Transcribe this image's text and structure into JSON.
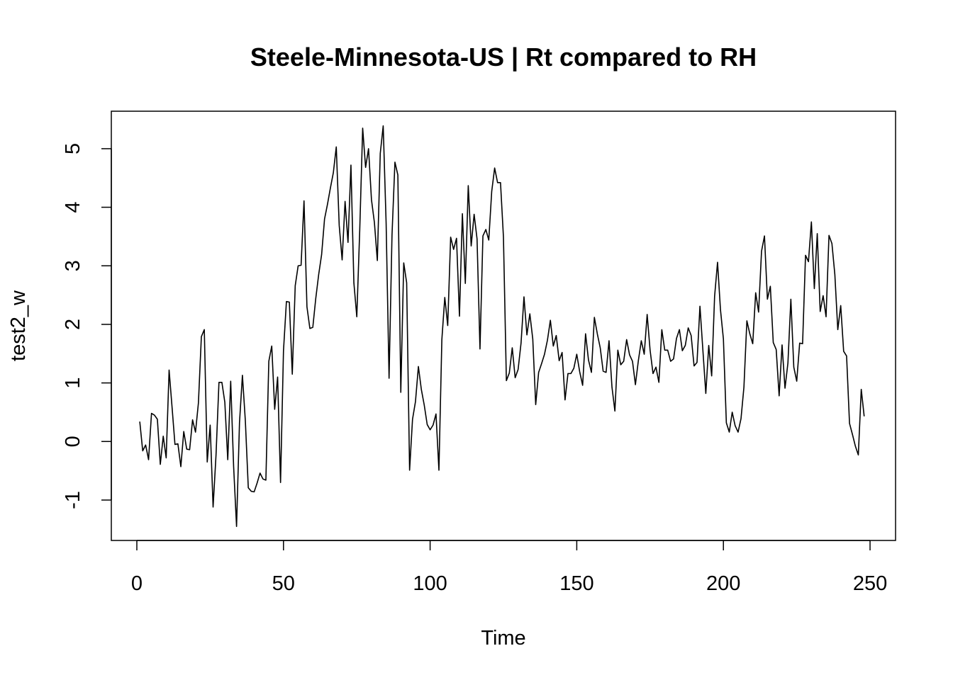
{
  "chart_data": {
    "type": "line",
    "title": "Steele-Minnesota-US | Rt compared to RH",
    "xlabel": "Time",
    "ylabel": "test2_w",
    "xlim": [
      -8.7,
      258.7
    ],
    "ylim": [
      -1.69,
      5.64
    ],
    "x_ticks": [
      0,
      50,
      100,
      150,
      200,
      250
    ],
    "y_ticks": [
      -1,
      0,
      1,
      2,
      3,
      4,
      5
    ],
    "x_tick_labels": [
      "0",
      "50",
      "100",
      "150",
      "200",
      "250"
    ],
    "y_tick_labels": [
      "-1",
      "0",
      "1",
      "2",
      "3",
      "4",
      "5"
    ],
    "grid": false,
    "line_color": "#000000",
    "series": [
      {
        "x_start": 1,
        "values": [
          0.34,
          -0.16,
          -0.06,
          -0.31,
          0.48,
          0.45,
          0.38,
          -0.39,
          0.09,
          -0.28,
          1.22,
          0.59,
          -0.05,
          -0.04,
          -0.43,
          0.17,
          -0.13,
          -0.14,
          0.37,
          0.16,
          0.66,
          1.79,
          1.91,
          -0.35,
          0.28,
          -1.12,
          -0.23,
          1.01,
          1.01,
          0.67,
          -0.31,
          1.03,
          -0.43,
          -1.45,
          0.32,
          1.13,
          0.35,
          -0.79,
          -0.85,
          -0.86,
          -0.71,
          -0.54,
          -0.64,
          -0.66,
          1.37,
          1.63,
          0.55,
          1.1,
          -0.7,
          1.55,
          2.39,
          2.38,
          1.15,
          2.66,
          3.0,
          3.01,
          4.11,
          2.3,
          1.93,
          1.95,
          2.44,
          2.85,
          3.19,
          3.8,
          4.05,
          4.33,
          4.59,
          5.03,
          3.69,
          3.1,
          4.1,
          3.4,
          4.72,
          2.71,
          2.13,
          3.61,
          5.35,
          4.68,
          5.0,
          4.13,
          3.74,
          3.09,
          4.92,
          5.39,
          3.73,
          1.08,
          3.52,
          4.77,
          4.55,
          0.84,
          3.05,
          2.71,
          -0.49,
          0.38,
          0.68,
          1.28,
          0.89,
          0.62,
          0.29,
          0.2,
          0.28,
          0.47,
          -0.49,
          1.74,
          2.46,
          1.98,
          3.49,
          3.28,
          3.47,
          2.14,
          3.89,
          2.7,
          4.37,
          3.34,
          3.88,
          3.46,
          1.58,
          3.51,
          3.62,
          3.44,
          4.27,
          4.67,
          4.42,
          4.42,
          3.49,
          1.04,
          1.17,
          1.6,
          1.09,
          1.23,
          1.68,
          2.47,
          1.82,
          2.18,
          1.75,
          0.63,
          1.18,
          1.33,
          1.49,
          1.73,
          2.07,
          1.63,
          1.81,
          1.38,
          1.52,
          0.71,
          1.16,
          1.16,
          1.25,
          1.49,
          1.19,
          0.96,
          1.84,
          1.39,
          1.18,
          2.12,
          1.84,
          1.6,
          1.2,
          1.18,
          1.72,
          0.93,
          0.52,
          1.56,
          1.31,
          1.37,
          1.74,
          1.48,
          1.37,
          0.97,
          1.38,
          1.72,
          1.49,
          2.17,
          1.56,
          1.16,
          1.27,
          1.01,
          1.91,
          1.56,
          1.56,
          1.37,
          1.41,
          1.76,
          1.91,
          1.55,
          1.64,
          1.94,
          1.81,
          1.29,
          1.35,
          2.31,
          1.56,
          0.82,
          1.64,
          1.12,
          2.48,
          3.06,
          2.25,
          1.75,
          0.32,
          0.16,
          0.5,
          0.27,
          0.16,
          0.39,
          0.93,
          2.06,
          1.84,
          1.67,
          2.54,
          2.21,
          3.25,
          3.51,
          2.43,
          2.65,
          1.69,
          1.57,
          0.78,
          1.65,
          0.91,
          1.34,
          2.43,
          1.27,
          1.03,
          1.68,
          1.67,
          3.18,
          3.07,
          3.75,
          2.61,
          3.55,
          2.22,
          2.49,
          2.13,
          3.52,
          3.38,
          2.85,
          1.91,
          2.32,
          1.54,
          1.46,
          0.31,
          0.12,
          -0.08,
          -0.23,
          0.89,
          0.43
        ]
      }
    ]
  }
}
